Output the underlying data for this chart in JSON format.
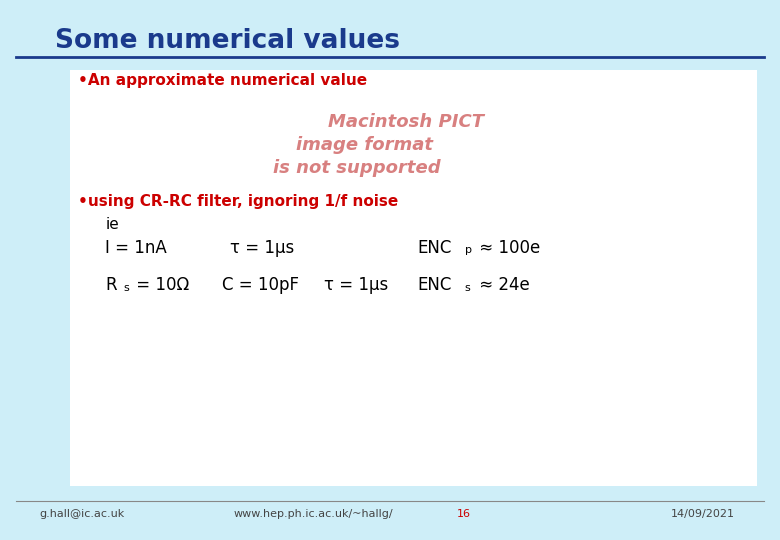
{
  "title": "Some numerical values",
  "title_color": "#1a3a8c",
  "background_color": "#ceeef8",
  "content_bg": "#ffffff",
  "bullet1": "•An approximate numerical value",
  "bullet1_color": "#cc0000",
  "pict_lines": [
    "Macintosh PICT",
    "image format",
    "is not supported"
  ],
  "pict_color": "#d88080",
  "bullet2": "•using CR-RC filter, ignoring 1/f noise",
  "bullet2_color": "#cc0000",
  "line_ie": "ie",
  "footer_left": "g.hall@ic.ac.uk",
  "footer_center": "www.hep.ph.ic.ac.uk/~hallg/",
  "footer_page": "16",
  "footer_right": "14/09/2021",
  "footer_color": "#444444",
  "footer_page_color": "#cc0000",
  "text_color": "#000000",
  "line_color": "#1a3a8c"
}
